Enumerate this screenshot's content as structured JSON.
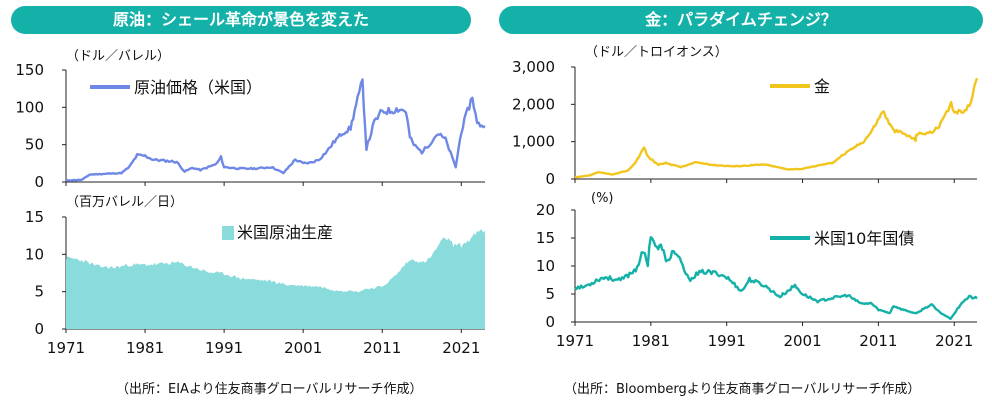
{
  "panels": {
    "left_title": "原油：シェール革命が景色を変えた",
    "right_title": "金：パラダイムチェンジ？",
    "left_source": "（出所：EIAより住友商事グローバルリサーチ作成）",
    "right_source": "（出所：Bloombergより住友商事グローバルリサーチ作成）"
  },
  "chart_data": [
    {
      "type": "line",
      "ylabel": "（ドル／バレル）",
      "legend": "原油価格（米国）",
      "color": "#6f88e6",
      "xlim": [
        1971,
        2024
      ],
      "ylim": [
        0,
        150
      ],
      "yticks": [
        "0",
        "50",
        "100",
        "150"
      ],
      "yticks_values": [
        0,
        50,
        100,
        150
      ],
      "x": [
        1971,
        1973,
        1974,
        1978,
        1979,
        1980,
        1981,
        1982,
        1983,
        1985,
        1986,
        1987,
        1988,
        1990,
        1990.6,
        1991,
        1993,
        1995,
        1997,
        1998.5,
        1999,
        2000,
        2001,
        2002,
        2003,
        2004,
        2005,
        2006,
        2007,
        2007.5,
        2008.5,
        2009,
        2010,
        2011,
        2012,
        2013,
        2014,
        2014.5,
        2015,
        2016,
        2017,
        2018,
        2019,
        2020.3,
        2021,
        2022.4,
        2023,
        2024
      ],
      "y": [
        2,
        3,
        10,
        12,
        20,
        36,
        35,
        30,
        29,
        27,
        14,
        19,
        16,
        24,
        33,
        20,
        18,
        18,
        20,
        12,
        18,
        30,
        25,
        26,
        30,
        41,
        55,
        66,
        72,
        95,
        134,
        45,
        80,
        95,
        95,
        98,
        95,
        60,
        50,
        40,
        51,
        65,
        57,
        20,
        68,
        115,
        78,
        75
      ]
    },
    {
      "type": "area",
      "ylabel": "（百万バレル／日）",
      "legend": "米国原油生産",
      "color": "#89dbdc",
      "xlim": [
        1971,
        2024
      ],
      "ylim": [
        0,
        15
      ],
      "yticks": [
        "0",
        "5",
        "10",
        "15"
      ],
      "yticks_values": [
        0,
        5,
        10,
        15
      ],
      "xticks": [
        "1971",
        "1981",
        "1991",
        "2001",
        "2011",
        "2021"
      ],
      "xticks_values": [
        1971,
        1981,
        1991,
        2001,
        2011,
        2021
      ],
      "x": [
        1971,
        1972,
        1973,
        1975,
        1977,
        1979,
        1981,
        1983,
        1985,
        1987,
        1989,
        1991,
        1993,
        1995,
        1997,
        1999,
        2001,
        2003,
        2005,
        2007,
        2008,
        2009,
        2010,
        2011,
        2012,
        2013,
        2014,
        2015,
        2016,
        2017,
        2018,
        2019,
        2020,
        2021,
        2022,
        2023,
        2024
      ],
      "y": [
        9.5,
        9.4,
        9.2,
        8.4,
        8.2,
        8.6,
        8.6,
        8.7,
        8.9,
        8.3,
        7.6,
        7.4,
        6.8,
        6.6,
        6.4,
        5.9,
        5.8,
        5.7,
        5.2,
        5.1,
        5.0,
        5.4,
        5.5,
        5.7,
        6.5,
        7.5,
        8.8,
        9.4,
        8.8,
        9.4,
        11.0,
        12.3,
        11.3,
        11.2,
        11.9,
        12.9,
        13.2
      ]
    },
    {
      "type": "line",
      "ylabel": "（ドル／トロイオンス）",
      "legend": "金",
      "color": "#f2c51c",
      "xlim": [
        1971,
        2024
      ],
      "ylim": [
        0,
        3000
      ],
      "yticks": [
        "0",
        "1,000",
        "2,000",
        "3,000"
      ],
      "yticks_values": [
        0,
        1000,
        2000,
        3000
      ],
      "x": [
        1971,
        1973,
        1974,
        1976,
        1978,
        1979,
        1980.1,
        1980.6,
        1982,
        1983,
        1985,
        1987,
        1989,
        1992,
        1996,
        1999,
        2001,
        2003,
        2005,
        2006,
        2008,
        2009,
        2010,
        2011.7,
        2012,
        2013,
        2014,
        2015.9,
        2016,
        2018,
        2019,
        2020.6,
        2021,
        2022,
        2023,
        2024
      ],
      "y": [
        40,
        100,
        180,
        120,
        230,
        450,
        850,
        600,
        380,
        430,
        320,
        450,
        380,
        340,
        390,
        260,
        270,
        360,
        440,
        600,
        870,
        1000,
        1250,
        1850,
        1650,
        1300,
        1250,
        1050,
        1200,
        1250,
        1400,
        2000,
        1800,
        1800,
        1950,
        2700
      ]
    },
    {
      "type": "line",
      "ylabel": "(%)",
      "legend": "米国10年国債",
      "color": "#14b1a8",
      "xlim": [
        1971,
        2024
      ],
      "ylim": [
        0,
        20
      ],
      "yticks": [
        "0",
        "5",
        "10",
        "15",
        "20"
      ],
      "yticks_values": [
        0,
        5,
        10,
        15,
        20
      ],
      "xticks": [
        "1971",
        "1981",
        "1991",
        "2001",
        "2011",
        "2021"
      ],
      "xticks_values": [
        1971,
        1981,
        1991,
        2001,
        2011,
        2021
      ],
      "x": [
        1971,
        1972,
        1973,
        1974,
        1975,
        1977,
        1978,
        1979,
        1980,
        1980.6,
        1981,
        1981.8,
        1982.5,
        1983,
        1984,
        1985,
        1986,
        1987,
        1988,
        1990,
        1991,
        1993,
        1994,
        1996,
        1998,
        2000,
        2001,
        2003,
        2005,
        2007,
        2008,
        2009,
        2010,
        2011,
        2012.5,
        2013,
        2014,
        2016,
        2017,
        2018,
        2019,
        2020.5,
        2021,
        2022,
        2023,
        2024
      ],
      "y": [
        6.2,
        6.2,
        6.8,
        7.6,
        8.0,
        7.4,
        8.4,
        9.4,
        12.5,
        10.5,
        15.8,
        13,
        13.5,
        10.5,
        12.8,
        10.5,
        7.5,
        8.5,
        9.0,
        8.6,
        8.0,
        5.5,
        7.6,
        6.5,
        4.5,
        6.5,
        5.0,
        3.7,
        4.3,
        4.8,
        3.8,
        3.2,
        3.4,
        2.2,
        1.6,
        2.9,
        2.3,
        1.5,
        2.4,
        3.1,
        1.8,
        0.6,
        1.5,
        3.5,
        4.5,
        4.2
      ]
    }
  ]
}
